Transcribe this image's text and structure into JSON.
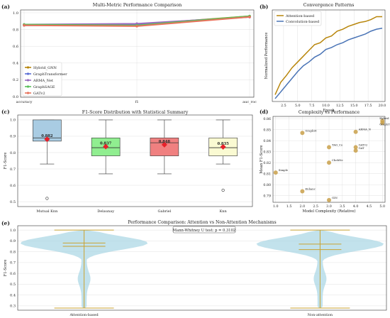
{
  "figure_labels": [
    "(a)",
    "(b)",
    "(c)",
    "(d)",
    "(e)"
  ],
  "chart_data": [
    {
      "id": "a",
      "type": "line",
      "title": "Multi-Metric Performance Comparison",
      "xlabel": "",
      "ylabel": "",
      "categories": [
        "accuracy",
        "f1",
        "auc_roc"
      ],
      "ylim": [
        0,
        1.0
      ],
      "yticks": [
        "0.0",
        "0.2",
        "0.4",
        "0.6",
        "0.8",
        "1.0"
      ],
      "legend_position": "lower-left",
      "grid": true,
      "series": [
        {
          "name": "Hybrid_GNN",
          "color": "#b8860b",
          "values": [
            0.86,
            0.86,
            0.96
          ]
        },
        {
          "name": "GraphTransformer",
          "color": "#5b6fd6",
          "values": [
            0.85,
            0.86,
            0.95
          ]
        },
        {
          "name": "ARMA_Net",
          "color": "#9b6bc0",
          "values": [
            0.86,
            0.87,
            0.95
          ]
        },
        {
          "name": "GraphSAGE",
          "color": "#5cbf5c",
          "values": [
            0.86,
            0.85,
            0.96
          ]
        },
        {
          "name": "GATv2",
          "color": "#e8735c",
          "values": [
            0.85,
            0.84,
            0.95
          ]
        }
      ]
    },
    {
      "id": "b",
      "type": "line",
      "title": "Convergence Patterns",
      "xlabel": "Epoch",
      "ylabel": "Normalized Performance",
      "xlim": [
        0.5,
        20.5
      ],
      "xticks": [
        "2.5",
        "5.0",
        "7.5",
        "10.0",
        "12.5",
        "15.0",
        "17.5",
        "20.0"
      ],
      "ylim": [
        0.05,
        1.0
      ],
      "legend_position": "top-left",
      "grid": true,
      "series": [
        {
          "name": "Attention-based",
          "color": "#b8860b",
          "x": [
            1,
            2,
            3,
            4,
            5,
            6,
            7,
            8,
            9,
            10,
            11,
            12,
            13,
            14,
            15,
            16,
            17,
            18,
            19,
            20
          ],
          "values": [
            0.12,
            0.25,
            0.32,
            0.4,
            0.46,
            0.52,
            0.58,
            0.64,
            0.66,
            0.71,
            0.73,
            0.78,
            0.8,
            0.83,
            0.85,
            0.87,
            0.88,
            0.9,
            0.93,
            0.93
          ]
        },
        {
          "name": "Convolution-based",
          "color": "#4a74b6",
          "x": [
            1,
            2,
            3,
            4,
            5,
            6,
            7,
            8,
            9,
            10,
            11,
            12,
            13,
            14,
            15,
            16,
            17,
            18,
            19,
            20
          ],
          "values": [
            0.08,
            0.15,
            0.22,
            0.29,
            0.36,
            0.42,
            0.46,
            0.51,
            0.54,
            0.59,
            0.61,
            0.64,
            0.66,
            0.69,
            0.71,
            0.73,
            0.75,
            0.78,
            0.8,
            0.81
          ]
        }
      ]
    },
    {
      "id": "c",
      "type": "box",
      "title": "F1-Score Distribution with Statistical Summary",
      "xlabel": "",
      "ylabel": "F1-Score",
      "ylim": [
        0.47,
        1.03
      ],
      "yticks": [
        "0.5",
        "0.6",
        "0.7",
        "0.8",
        "0.9",
        "1.0"
      ],
      "grid": true,
      "boxes": [
        {
          "name": "Mutual Knn",
          "color": "#a9cce3",
          "whisker_low": 0.73,
          "q1": 0.87,
          "median": 0.89,
          "q3": 1.0,
          "whisker_high": 1.0,
          "mean": 0.882,
          "mean_label": "0.882",
          "outliers": [
            0.52
          ]
        },
        {
          "name": "Delaunay",
          "color": "#90ee90",
          "whisker_low": 0.67,
          "q1": 0.78,
          "median": 0.83,
          "q3": 0.89,
          "whisker_high": 1.0,
          "mean": 0.837,
          "mean_label": "0.837",
          "outliers": []
        },
        {
          "name": "Gabriel",
          "color": "#f08080",
          "whisker_low": 0.67,
          "q1": 0.78,
          "median": 0.86,
          "q3": 0.89,
          "whisker_high": 1.0,
          "mean": 0.848,
          "mean_label": "0.848",
          "outliers": []
        },
        {
          "name": "Knn",
          "color": "#fafad2",
          "whisker_low": 0.73,
          "q1": 0.78,
          "median": 0.83,
          "q3": 0.89,
          "whisker_high": 1.0,
          "mean": 0.835,
          "mean_label": "0.835",
          "outliers": [
            0.57
          ]
        }
      ]
    },
    {
      "id": "d",
      "type": "scatter",
      "title": "Complexity vs Performance",
      "xlabel": "Model Complexity (Relative)",
      "ylabel": "Mean F1-Score",
      "xlim": [
        0.9,
        5.1
      ],
      "xticks": [
        "1.0",
        "1.5",
        "2.0",
        "2.5",
        "3.0",
        "3.5",
        "4.0",
        "4.5",
        "5.0"
      ],
      "ylim": [
        0.784,
        0.862
      ],
      "yticks": [
        "0.79",
        "0.80",
        "0.81",
        "0.82",
        "0.83",
        "0.84",
        "0.85",
        "0.86"
      ],
      "grid": true,
      "color": "#c9a04a",
      "points": [
        {
          "label": "Hybrid",
          "x": 5.0,
          "y": 0.858
        },
        {
          "label": "GraphT",
          "x": 5.0,
          "y": 0.856
        },
        {
          "label": "GraphSt",
          "x": 2.0,
          "y": 0.847
        },
        {
          "label": "ARMA_N",
          "x": 4.0,
          "y": 0.848
        },
        {
          "label": "TAG_Co",
          "x": 3.0,
          "y": 0.834
        },
        {
          "label": "GATv2",
          "x": 4.0,
          "y": 0.834
        },
        {
          "label": "GAT",
          "x": 4.0,
          "y": 0.831
        },
        {
          "label": "ChebNe",
          "x": 3.0,
          "y": 0.82
        },
        {
          "label": "Simple",
          "x": 1.0,
          "y": 0.811
        },
        {
          "label": "Enhanc",
          "x": 2.0,
          "y": 0.794
        },
        {
          "label": "GIN",
          "x": 3.0,
          "y": 0.786
        }
      ]
    },
    {
      "id": "e",
      "type": "violin",
      "title": "Performance Comparison: Attention vs Non-Attention Mechanisms",
      "annotation": "Mann-Whitney U test: p = 0.3102",
      "xlabel": "",
      "ylabel": "F1-Score",
      "ylim": [
        0.26,
        1.04
      ],
      "yticks": [
        "0.3",
        "0.4",
        "0.5",
        "0.6",
        "0.7",
        "0.8",
        "0.9",
        "1.0"
      ],
      "grid": true,
      "fill": "#add8e6",
      "line_color": "#c8a232",
      "groups": [
        {
          "name": "Attention-based",
          "min": 0.28,
          "max": 1.0,
          "mean": 0.85,
          "median": 0.88
        },
        {
          "name": "Non-attention",
          "min": 0.28,
          "max": 1.0,
          "mean": 0.82,
          "median": 0.87
        }
      ]
    }
  ]
}
